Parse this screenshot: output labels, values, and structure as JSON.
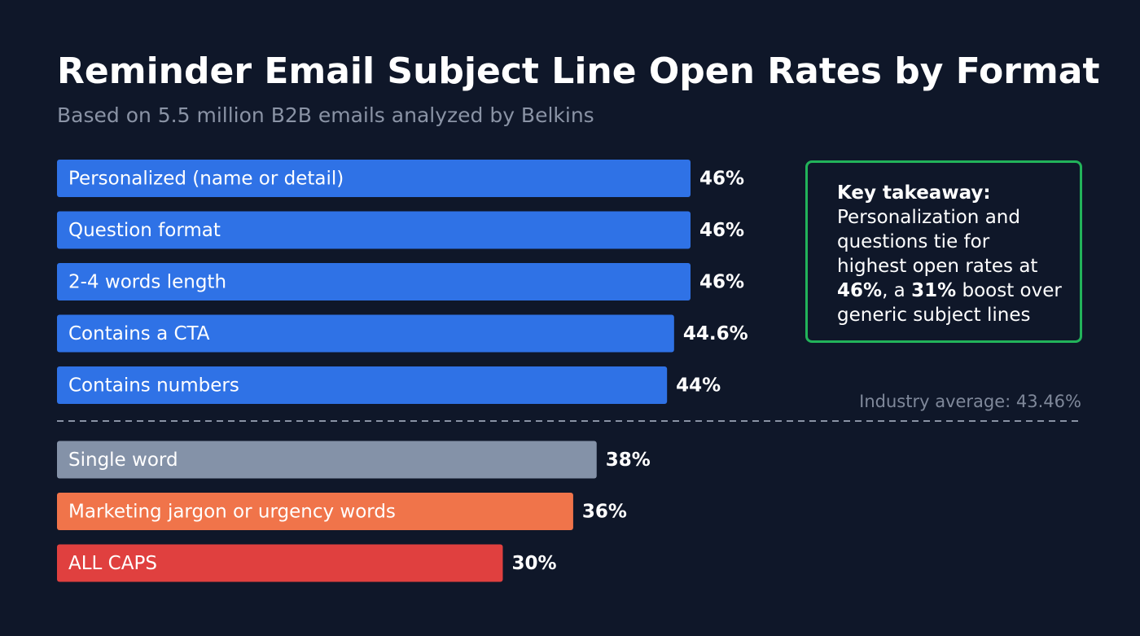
{
  "chart_data": {
    "type": "bar",
    "orientation": "horizontal",
    "title": "Reminder Email Subject Line Open Rates by Format",
    "subtitle": "Based on 5.5 million B2B emails analyzed by Belkins",
    "categories": [
      "Personalized (name or detail)",
      "Question format",
      "2-4 words length",
      "Contains a CTA",
      "Contains numbers",
      "Single word",
      "Marketing jargon or urgency words",
      "ALL CAPS"
    ],
    "values": [
      46,
      46,
      46,
      44.6,
      44,
      38,
      36,
      30
    ],
    "value_labels": [
      "46%",
      "46%",
      "46%",
      "44.6%",
      "44%",
      "38%",
      "36%",
      "30%"
    ],
    "colors": [
      "#2f72e6",
      "#2f72e6",
      "#2f72e6",
      "#2f72e6",
      "#2f72e6",
      "#8492a8",
      "#f0744a",
      "#e0403f"
    ],
    "xlim": [
      -8,
      46
    ],
    "reference": {
      "value": 43.46,
      "label": "Industry average: 43.46%"
    },
    "takeaway": {
      "title": "Key takeaway:",
      "parts": [
        {
          "text": "Personalization and questions tie for highest open rates at ",
          "bold": false
        },
        {
          "text": "46%",
          "bold": true
        },
        {
          "text": ", a ",
          "bold": false
        },
        {
          "text": "31%",
          "bold": true
        },
        {
          "text": " boost over generic subject lines",
          "bold": false
        }
      ]
    }
  }
}
